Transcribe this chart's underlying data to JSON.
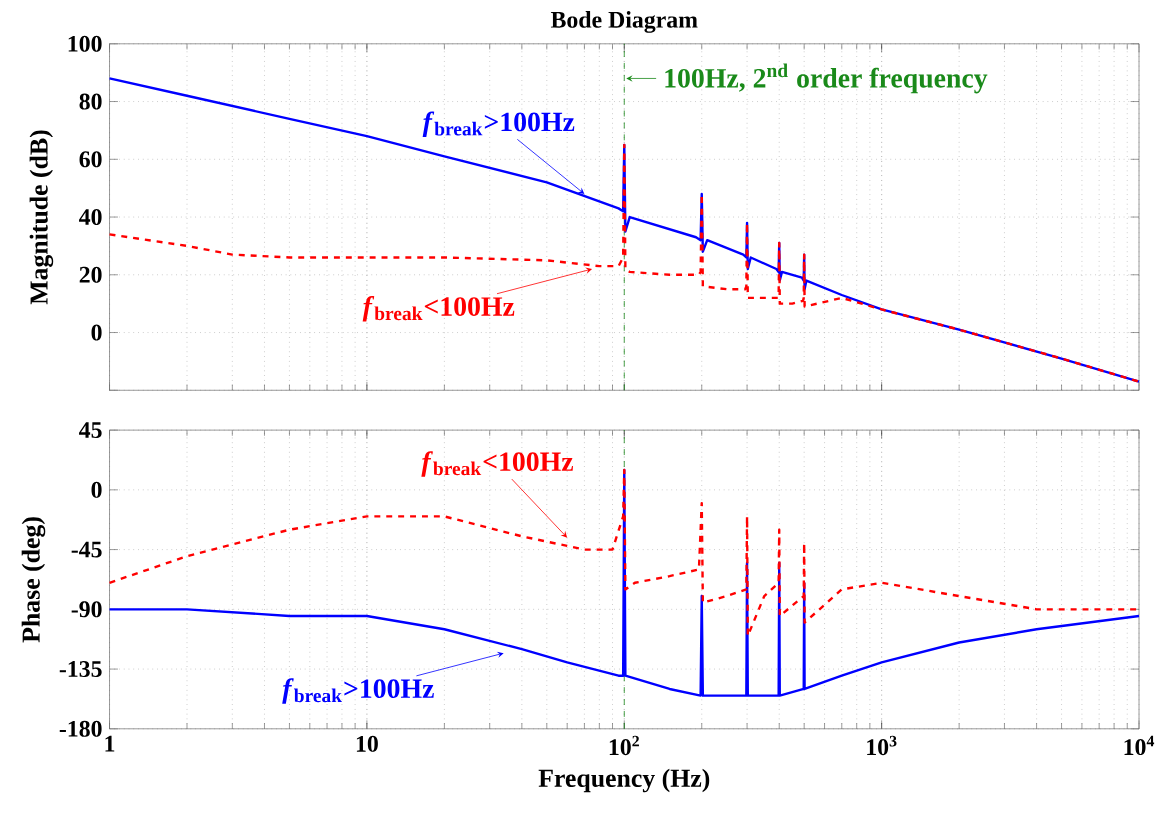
{
  "chart_data": [
    {
      "type": "line",
      "title": "Bode Diagram",
      "ylabel": "Magnitude (dB)",
      "log": "x",
      "grid": true,
      "tick_labels": "y",
      "xlim": [
        1,
        10000
      ],
      "ylim": [
        -20,
        100
      ],
      "xticks": [
        {
          "value": 1,
          "label": null
        },
        {
          "value": 10,
          "label": null
        },
        {
          "value": 100,
          "label": null
        },
        {
          "value": 1000,
          "label": null
        },
        {
          "value": 10000,
          "label": null
        }
      ],
      "yticks": [
        {
          "value": -20,
          "label": null
        },
        0,
        20,
        40,
        60,
        80,
        100
      ],
      "series": [
        {
          "color": "#0000ff",
          "line_style": "solid",
          "x": [
            1,
            2,
            5,
            10,
            20,
            50,
            95,
            99,
            100,
            101,
            105,
            190,
            198,
            200,
            202,
            210,
            290,
            298,
            300,
            302,
            310,
            390,
            398,
            400,
            402,
            410,
            490,
            498,
            500,
            502,
            510,
            700,
            1000,
            2000,
            5000,
            10000
          ],
          "values": [
            88,
            82,
            74,
            68,
            61,
            52,
            43,
            42,
            65,
            35,
            40,
            33,
            32,
            48,
            28,
            32,
            27,
            26,
            38,
            22,
            26,
            22,
            21,
            31,
            18,
            21,
            19,
            18,
            27,
            15,
            18,
            13,
            8,
            1,
            -9,
            -17
          ]
        },
        {
          "color": "#ff0000",
          "line_style": "dashed",
          "x": [
            1,
            2,
            3,
            5,
            10,
            20,
            50,
            80,
            95,
            99,
            100,
            101,
            105,
            150,
            195,
            198,
            200,
            202,
            250,
            295,
            298,
            300,
            302,
            350,
            395,
            398,
            400,
            402,
            450,
            495,
            498,
            500,
            502,
            700,
            1000,
            2000,
            5000,
            10000
          ],
          "values": [
            34,
            30,
            27,
            26,
            26,
            26,
            25,
            23,
            23,
            26,
            65,
            22,
            21,
            20,
            20,
            21,
            48,
            16,
            15,
            15,
            16,
            38,
            12,
            12,
            12,
            13,
            31,
            10,
            10,
            11,
            12,
            27,
            9,
            12,
            8,
            1,
            -9,
            -17
          ]
        }
      ],
      "ref_lines": [
        {
          "axis": "x",
          "value": 100,
          "label": "100Hz, 2$^{nd}$ order frequency",
          "color": "#1a8a1a",
          "line_style": "dashed"
        }
      ],
      "annotations": [
        {
          "text": "*f*$_{break}$>100Hz",
          "x": 70,
          "y": 48
        },
        {
          "text": "*f*$_{break}$<100Hz",
          "x": 75,
          "y": 22
        }
      ]
    },
    {
      "type": "line",
      "xlabel": "Frequency  (Hz)",
      "ylabel": "Phase (deg)",
      "log": "x",
      "grid": true,
      "xlim": [
        1,
        10000
      ],
      "ylim": [
        -180,
        45
      ],
      "xticks": [
        {
          "value": 1,
          "label": "1"
        },
        {
          "value": 10,
          "label": "10"
        },
        {
          "value": 100,
          "label": "10$^{2}$"
        },
        {
          "value": 1000,
          "label": "10$^{3}$"
        },
        {
          "value": 10000,
          "label": "10$^{4}$"
        }
      ],
      "yticks": [
        -180,
        -135,
        -90,
        -45,
        0,
        45
      ],
      "series": [
        {
          "color": "#0000ff",
          "line_style": "solid",
          "x": [
            1,
            2,
            5,
            10,
            20,
            40,
            60,
            95,
            99,
            100,
            101,
            150,
            198,
            200,
            202,
            298,
            300,
            302,
            398,
            400,
            402,
            498,
            500,
            502,
            700,
            1000,
            2000,
            4000,
            10000
          ],
          "values": [
            -90,
            -90,
            -95,
            -95,
            -105,
            -120,
            -130,
            -140,
            -140,
            15,
            -140,
            -150,
            -155,
            -80,
            -155,
            -155,
            -55,
            -155,
            -155,
            -55,
            -155,
            -150,
            -70,
            -150,
            -140,
            -130,
            -115,
            -105,
            -95
          ]
        },
        {
          "color": "#ff0000",
          "line_style": "dashed",
          "x": [
            1,
            2,
            5,
            10,
            20,
            40,
            70,
            90,
            99,
            100,
            101,
            110,
            150,
            195,
            200,
            202,
            250,
            298,
            300,
            302,
            350,
            398,
            400,
            402,
            498,
            500,
            502,
            700,
            1000,
            2000,
            4000,
            10000
          ],
          "values": [
            -70,
            -50,
            -30,
            -20,
            -20,
            -35,
            -45,
            -45,
            -20,
            15,
            -75,
            -70,
            -65,
            -60,
            -10,
            -85,
            -80,
            -75,
            -20,
            -110,
            -80,
            -70,
            -30,
            -95,
            -80,
            -40,
            -100,
            -75,
            -70,
            -80,
            -90,
            -90
          ]
        }
      ],
      "ref_lines": [
        {
          "axis": "x",
          "value": 100,
          "color": "#1a8a1a",
          "line_style": "dashed"
        }
      ],
      "annotations": [
        {
          "text": "*f*$_{break}$<100Hz",
          "x": 60,
          "y": -36
        },
        {
          "text": "*f*$_{break}$>100Hz",
          "x": 34,
          "y": -123
        }
      ]
    }
  ]
}
